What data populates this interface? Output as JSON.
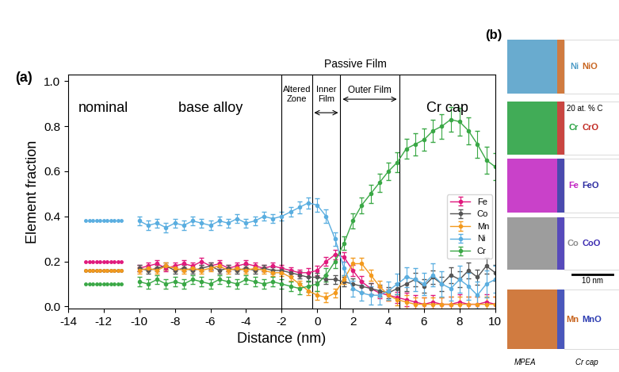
{
  "chart_data": {
    "type": "line",
    "panel_label": "(a)",
    "x_label": "Distance (nm)",
    "y_label": "Element fraction",
    "xlim": [
      -14,
      10
    ],
    "xticks": [
      -14,
      -12,
      -10,
      -8,
      -6,
      -4,
      -2,
      0,
      2,
      4,
      6,
      8,
      10
    ],
    "ylim": [
      -0.01,
      1.03
    ],
    "yticks": [
      {
        "value": 0.0,
        "label": "0.0"
      },
      {
        "value": 0.2,
        "label": "0.2"
      },
      {
        "value": 0.4,
        "label": "0.4"
      },
      {
        "value": 0.6,
        "label": "0.6"
      },
      {
        "value": 0.8,
        "label": "0.8"
      },
      {
        "value": 1.0,
        "label": "1.0"
      }
    ],
    "legend": "center right",
    "boundaries": [
      -2.0,
      -0.3,
      1.3,
      4.6
    ],
    "annotations": {
      "nominal": "nominal",
      "base": "base alloy",
      "altered": "Altered\nZone",
      "inner": "Inner\nFilm",
      "outer": "Outer Film",
      "passive": "Passive Film",
      "cap": "Cr cap"
    },
    "nominal_x": [
      -13.0,
      -12.8,
      -12.6,
      -12.4,
      -12.2,
      -12.0,
      -11.8,
      -11.6,
      -11.4,
      -11.2,
      -11.0
    ],
    "x": [
      -10,
      -9.5,
      -9,
      -8.5,
      -8,
      -7.5,
      -7,
      -6.5,
      -6,
      -5.5,
      -5,
      -4.5,
      -4,
      -3.5,
      -3,
      -2.5,
      -2,
      -1.5,
      -1,
      -0.5,
      0,
      0.5,
      1,
      1.5,
      2,
      2.5,
      3,
      3.5,
      4,
      4.5,
      5,
      5.5,
      6,
      6.5,
      7,
      7.5,
      8,
      8.5,
      9,
      9.5,
      10
    ],
    "series": [
      {
        "name": "Fe",
        "color": "#e0197d",
        "marker": "o",
        "line_style": "solid",
        "nominal": 0.2,
        "values": [
          0.17,
          0.18,
          0.19,
          0.17,
          0.18,
          0.19,
          0.18,
          0.2,
          0.18,
          0.19,
          0.17,
          0.18,
          0.19,
          0.18,
          0.17,
          0.18,
          0.17,
          0.16,
          0.15,
          0.15,
          0.16,
          0.2,
          0.23,
          0.22,
          0.16,
          0.11,
          0.08,
          0.06,
          0.05,
          0.04,
          0.03,
          0.02,
          0.01,
          0.02,
          0.01,
          0.01,
          0.02,
          0.01,
          0.01,
          0.02,
          0.01
        ],
        "errors": [
          0.015,
          0.015,
          0.015,
          0.015,
          0.015,
          0.015,
          0.015,
          0.015,
          0.015,
          0.015,
          0.015,
          0.015,
          0.015,
          0.015,
          0.015,
          0.015,
          0.015,
          0.015,
          0.015,
          0.02,
          0.02,
          0.02,
          0.02,
          0.02,
          0.025,
          0.025,
          0.025,
          0.025,
          0.025,
          0.025,
          0.03,
          0.03,
          0.03,
          0.03,
          0.03,
          0.035,
          0.035,
          0.035,
          0.035,
          0.035,
          0.035
        ]
      },
      {
        "name": "Co",
        "color": "#555555",
        "marker": "o",
        "line_style": "solid",
        "nominal": 0.16,
        "values": [
          0.17,
          0.16,
          0.17,
          0.18,
          0.16,
          0.17,
          0.16,
          0.17,
          0.18,
          0.16,
          0.17,
          0.16,
          0.17,
          0.16,
          0.17,
          0.16,
          0.16,
          0.15,
          0.14,
          0.13,
          0.13,
          0.12,
          0.12,
          0.11,
          0.1,
          0.09,
          0.08,
          0.07,
          0.06,
          0.08,
          0.1,
          0.12,
          0.09,
          0.13,
          0.1,
          0.14,
          0.12,
          0.16,
          0.13,
          0.18,
          0.15
        ],
        "errors": [
          0.015,
          0.015,
          0.015,
          0.015,
          0.015,
          0.015,
          0.015,
          0.015,
          0.015,
          0.015,
          0.015,
          0.015,
          0.015,
          0.015,
          0.015,
          0.015,
          0.015,
          0.015,
          0.015,
          0.02,
          0.02,
          0.02,
          0.02,
          0.02,
          0.025,
          0.025,
          0.025,
          0.025,
          0.025,
          0.025,
          0.03,
          0.03,
          0.03,
          0.03,
          0.03,
          0.035,
          0.035,
          0.035,
          0.035,
          0.035,
          0.035
        ]
      },
      {
        "name": "Mn",
        "color": "#f39a1e",
        "marker": "o",
        "line_style": "solid",
        "nominal": 0.16,
        "values": [
          0.16,
          0.17,
          0.16,
          0.18,
          0.17,
          0.16,
          0.17,
          0.16,
          0.17,
          0.18,
          0.16,
          0.17,
          0.16,
          0.17,
          0.16,
          0.15,
          0.15,
          0.13,
          0.1,
          0.07,
          0.05,
          0.04,
          0.06,
          0.12,
          0.19,
          0.19,
          0.14,
          0.09,
          0.05,
          0.03,
          0.02,
          0.01,
          0.01,
          0.01,
          0.01,
          0.01,
          0.01,
          0.01,
          0.01,
          0.01,
          0.01
        ],
        "errors": [
          0.015,
          0.015,
          0.015,
          0.015,
          0.015,
          0.015,
          0.015,
          0.015,
          0.015,
          0.015,
          0.015,
          0.015,
          0.015,
          0.015,
          0.015,
          0.015,
          0.015,
          0.015,
          0.015,
          0.02,
          0.02,
          0.02,
          0.02,
          0.02,
          0.025,
          0.025,
          0.025,
          0.025,
          0.025,
          0.025,
          0.03,
          0.03,
          0.03,
          0.03,
          0.03,
          0.035,
          0.035,
          0.035,
          0.035,
          0.035,
          0.035
        ]
      },
      {
        "name": "Ni",
        "color": "#5aaee0",
        "marker": "o",
        "line_style": "solid",
        "nominal": 0.38,
        "values": [
          0.38,
          0.36,
          0.37,
          0.35,
          0.37,
          0.36,
          0.38,
          0.37,
          0.36,
          0.38,
          0.37,
          0.39,
          0.37,
          0.38,
          0.4,
          0.39,
          0.4,
          0.42,
          0.44,
          0.46,
          0.45,
          0.4,
          0.3,
          0.17,
          0.08,
          0.06,
          0.05,
          0.05,
          0.07,
          0.1,
          0.13,
          0.12,
          0.1,
          0.14,
          0.1,
          0.08,
          0.12,
          0.09,
          0.05,
          0.1,
          0.12
        ],
        "errors": [
          0.02,
          0.02,
          0.02,
          0.02,
          0.02,
          0.02,
          0.02,
          0.02,
          0.02,
          0.02,
          0.02,
          0.02,
          0.02,
          0.02,
          0.02,
          0.02,
          0.02,
          0.02,
          0.025,
          0.025,
          0.03,
          0.03,
          0.03,
          0.03,
          0.035,
          0.035,
          0.04,
          0.04,
          0.04,
          0.045,
          0.045,
          0.05,
          0.05,
          0.05,
          0.055,
          0.055,
          0.06,
          0.06,
          0.06,
          0.06,
          0.06
        ]
      },
      {
        "name": "Cr",
        "color": "#3aa846",
        "marker": "o",
        "line_style": "solid",
        "nominal": 0.1,
        "values": [
          0.11,
          0.1,
          0.12,
          0.1,
          0.11,
          0.1,
          0.12,
          0.11,
          0.1,
          0.12,
          0.11,
          0.1,
          0.12,
          0.11,
          0.1,
          0.11,
          0.1,
          0.09,
          0.08,
          0.09,
          0.1,
          0.14,
          0.2,
          0.28,
          0.38,
          0.45,
          0.5,
          0.55,
          0.6,
          0.64,
          0.7,
          0.72,
          0.74,
          0.78,
          0.8,
          0.83,
          0.82,
          0.78,
          0.72,
          0.65,
          0.62
        ],
        "errors": [
          0.02,
          0.02,
          0.02,
          0.02,
          0.02,
          0.02,
          0.02,
          0.02,
          0.02,
          0.02,
          0.02,
          0.02,
          0.02,
          0.02,
          0.02,
          0.02,
          0.02,
          0.02,
          0.025,
          0.025,
          0.03,
          0.03,
          0.03,
          0.03,
          0.035,
          0.035,
          0.04,
          0.04,
          0.04,
          0.045,
          0.045,
          0.05,
          0.05,
          0.05,
          0.055,
          0.055,
          0.06,
          0.06,
          0.06,
          0.06,
          0.06
        ]
      }
    ]
  },
  "panel_b": {
    "label": "(b)",
    "isosurface": "20 at. % C",
    "scale_bar": "10 nm",
    "left_label": "MPEA",
    "right_label": "Cr cap",
    "rows": [
      {
        "element": "Ni",
        "oxide": "NiO",
        "color": "#4f9cc7",
        "oxide_color": "#c8641e"
      },
      {
        "element": "Cr",
        "oxide": "CrO",
        "color": "#1f9e3a",
        "oxide_color": "#c0261f"
      },
      {
        "element": "Fe",
        "oxide": "FeO",
        "color": "#c020c0",
        "oxide_color": "#2a2aa0"
      },
      {
        "element": "Co",
        "oxide": "CoO",
        "color": "#8c8c8c",
        "oxide_color": "#3a2ab0"
      },
      {
        "element": "Mn",
        "oxide": "MnO",
        "color": "#c8641e",
        "oxide_color": "#2a3ab0"
      }
    ]
  }
}
